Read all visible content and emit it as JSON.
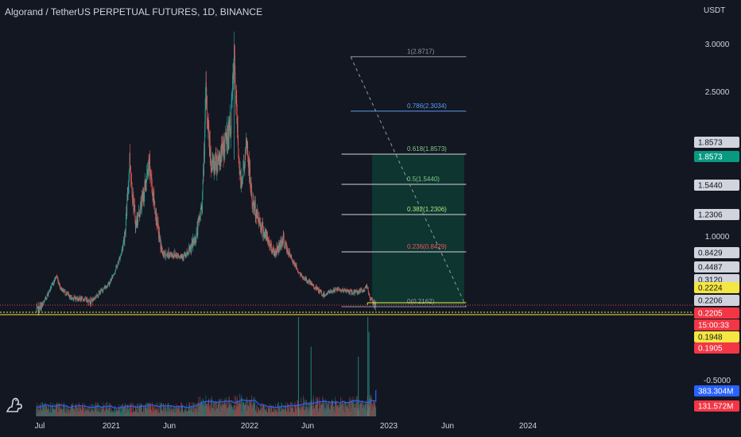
{
  "header": {
    "title": "Algorand / TetherUS PERPETUAL FUTURES, 1D, BINANCE",
    "currency": "USDT"
  },
  "colors": {
    "background": "#131722",
    "up": "#26a69a",
    "down": "#ef5350",
    "volume_ma": "#2962ff",
    "fib_0786": "#5b9cf6",
    "fib_0618": "#81c784",
    "fib_05": "#81c784",
    "fib_0382": "#b0e57c",
    "fib_0236": "#f7525f",
    "fib_gray": "#9598a1",
    "zone_fill": "#0e3b33",
    "price_yellow": "#f5e642",
    "red_label": "#f23645",
    "green_label": "#089981"
  },
  "chart_data": {
    "type": "candlestick",
    "symbol": "Algorand / TetherUS PERPETUAL FUTURES",
    "interval": "1D",
    "exchange": "BINANCE",
    "y_scale": "log",
    "y_ticks": [
      "3.0000",
      "2.5000",
      "1.0000",
      "-0.5000"
    ],
    "x_ticks": [
      "Jul",
      "2021",
      "Jun",
      "2022",
      "Jun",
      "2023",
      "Jun",
      "2024"
    ],
    "price_path": [
      [
        "2020-06-22",
        0.2
      ],
      [
        "2020-07-10",
        0.22
      ],
      [
        "2020-08-14",
        0.48
      ],
      [
        "2020-08-25",
        0.34
      ],
      [
        "2020-09-20",
        0.26
      ],
      [
        "2020-11-15",
        0.24
      ],
      [
        "2021-01-01",
        0.4
      ],
      [
        "2021-02-10",
        1.06
      ],
      [
        "2021-02-22",
        1.82
      ],
      [
        "2021-03-10",
        1.12
      ],
      [
        "2021-04-15",
        1.75
      ],
      [
        "2021-05-01",
        1.25
      ],
      [
        "2021-05-20",
        0.8
      ],
      [
        "2021-06-20",
        0.8
      ],
      [
        "2021-07-20",
        0.78
      ],
      [
        "2021-08-15",
        1.0
      ],
      [
        "2021-08-31",
        1.35
      ],
      [
        "2021-09-10",
        2.48
      ],
      [
        "2021-09-25",
        1.72
      ],
      [
        "2021-10-20",
        1.85
      ],
      [
        "2021-11-14",
        2.15
      ],
      [
        "2021-11-23",
        2.87
      ],
      [
        "2021-12-10",
        1.55
      ],
      [
        "2021-12-27",
        1.95
      ],
      [
        "2022-01-10",
        1.35
      ],
      [
        "2022-01-25",
        1.2
      ],
      [
        "2022-02-15",
        1.0
      ],
      [
        "2022-03-10",
        0.82
      ],
      [
        "2022-03-31",
        0.98
      ],
      [
        "2022-04-30",
        0.68
      ],
      [
        "2022-05-15",
        0.5
      ],
      [
        "2022-06-20",
        0.36
      ],
      [
        "2022-07-15",
        0.28
      ],
      [
        "2022-08-20",
        0.33
      ],
      [
        "2022-09-30",
        0.3
      ],
      [
        "2022-10-31",
        0.32
      ],
      [
        "2022-11-06",
        0.39
      ],
      [
        "2022-11-14",
        0.25
      ],
      [
        "2022-11-30",
        0.22
      ]
    ],
    "volume_spikes": [
      [
        "2022-05-11",
        1.0
      ],
      [
        "2022-06-13",
        0.7
      ],
      [
        "2022-11-09",
        1.0
      ],
      [
        "2022-11-12",
        0.85
      ],
      [
        "2022-10-15",
        0.6
      ]
    ],
    "fib_retracement": {
      "start_date": "2022-09-01",
      "end_date": "2023-07-25",
      "levels": [
        {
          "label": "1(2.8717)",
          "price": 2.8717,
          "color": "#9598a1"
        },
        {
          "label": "0.786(2.3034)",
          "price": 2.3034,
          "color": "#5b9cf6"
        },
        {
          "label": "0.618(1.8573)",
          "price": 1.8573,
          "color": "#81c784"
        },
        {
          "label": "0.5(1.5440)",
          "price": 1.544,
          "color": "#81c784"
        },
        {
          "label": "0.382(1.2306)",
          "price": 1.2306,
          "color": "#b0e57c"
        },
        {
          "label": "0.236(0.8429)",
          "price": 0.8429,
          "color": "#f7525f"
        },
        {
          "label": "0(0.2162)",
          "price": 0.2162,
          "color": "#9598a1"
        }
      ]
    },
    "long_position": {
      "start_date": "2022-11-20",
      "end_date": "2023-07-20",
      "entry": 0.2206,
      "target": 1.8573
    },
    "price_labels": [
      {
        "text": "1.8573",
        "price": 1.8573,
        "bg": "#d1d4dc",
        "fg": "#131722"
      },
      {
        "text": "1.8573",
        "price": 1.8573,
        "bg": "#089981",
        "fg": "#ffffff"
      },
      {
        "text": "1.5440",
        "price": 1.544,
        "bg": "#d1d4dc",
        "fg": "#131722"
      },
      {
        "text": "1.2306",
        "price": 1.2306,
        "bg": "#d1d4dc",
        "fg": "#131722"
      },
      {
        "text": "0.8429",
        "price": 0.8429,
        "bg": "#d1d4dc",
        "fg": "#131722"
      },
      {
        "text": "0.4487",
        "price": 0.4487,
        "bg": "#d1d4dc",
        "fg": "#131722"
      },
      {
        "text": "0.3120",
        "price": 0.312,
        "bg": "#d1d4dc",
        "fg": "#131722"
      },
      {
        "text": "0.2224",
        "price": 0.2224,
        "bg": "#f5e642",
        "fg": "#131722"
      },
      {
        "text": "0.2206",
        "price": 0.2206,
        "bg": "#d1d4dc",
        "fg": "#131722"
      },
      {
        "text": "0.2205",
        "price": 0.2205,
        "bg": "#f23645",
        "fg": "#ffffff"
      },
      {
        "text": "15:00:33",
        "price": 0.2205,
        "bg": "#f23645",
        "fg": "#ffffff"
      },
      {
        "text": "0.1948",
        "price": 0.1948,
        "bg": "#f5e642",
        "fg": "#131722"
      },
      {
        "text": "0.1905",
        "price": 0.1905,
        "bg": "#f23645",
        "fg": "#ffffff"
      }
    ],
    "volume_labels": [
      {
        "text": "383.304M",
        "bg": "#2962ff",
        "fg": "#ffffff"
      },
      {
        "text": "131.572M",
        "bg": "#f23645",
        "fg": "#ffffff"
      }
    ]
  }
}
